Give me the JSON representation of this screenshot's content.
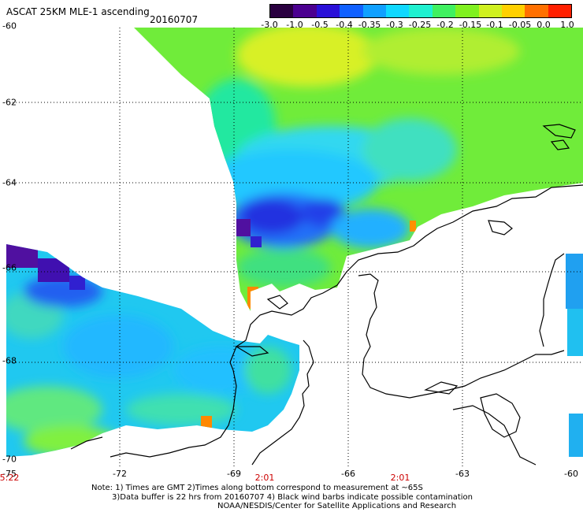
{
  "header": {
    "title": "ASCAT 25KM MLE-1 ascending",
    "date": "20160707"
  },
  "colorbar": {
    "labels": [
      "-3.0",
      "-1.0",
      "-0.5",
      "-0.4",
      "-0.35",
      "-0.3",
      "-0.25",
      "-0.2",
      "-0.15",
      "-0.1",
      "-0.05",
      "0.0",
      "1.0"
    ],
    "colors": [
      "#2a0040",
      "#4b0090",
      "#2a10d8",
      "#1060ff",
      "#10a0ff",
      "#10d8ff",
      "#20f0d0",
      "#40f060",
      "#80f020",
      "#d0f020",
      "#ffd000",
      "#ff7000",
      "#ff2000"
    ]
  },
  "axes": {
    "y_labels": [
      "-60",
      "-62",
      "-64",
      "-66",
      "-68",
      "-70"
    ],
    "x_labels": [
      "-75",
      "-72",
      "-69",
      "-66",
      "-63",
      "-60"
    ],
    "time_labels": [
      "5:22",
      "2:01",
      "2:01"
    ]
  },
  "notes": {
    "line1": "Note: 1) Times are GMT 2)Times along bottom correspond to measurement at ~65S",
    "line2": "3)Data buffer is 22 hrs from 20160707 4) Black wind barbs indicate possible contamination",
    "line3": "NOAA/NESDIS/Center for Satellite Applications and Research"
  }
}
